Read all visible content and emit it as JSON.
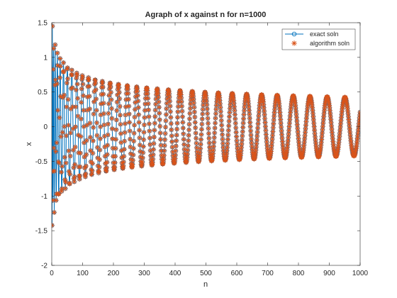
{
  "figure": {
    "background": "#ffffff"
  },
  "chart_data": {
    "type": "line",
    "title": "Agraph of x against n for n=1000",
    "xlabel": "n",
    "ylabel": "x",
    "xlim": [
      0,
      1000
    ],
    "ylim": [
      -2,
      1.5
    ],
    "xticks": [
      0,
      100,
      200,
      300,
      400,
      500,
      600,
      700,
      800,
      900,
      1000
    ],
    "xtick_labels": [
      "0",
      "100",
      "200",
      "300",
      "400",
      "500",
      "600",
      "700",
      "800",
      "900",
      "1000"
    ],
    "yticks": [
      -2,
      -1.5,
      -1,
      -0.5,
      0,
      0.5,
      1,
      1.5
    ],
    "ytick_labels": [
      "-2",
      "-1.5",
      "-1",
      "-0.5",
      "0",
      "0.5",
      "1",
      "1.5"
    ],
    "grid": false,
    "legend_position": "top-right",
    "model": "x(n) ≈ -1.58·(1+n/5)^(-0.25)·cos(2π·√(n/0.9)) (approximate reading)",
    "series": [
      {
        "name": "exact soln",
        "marker": "circle",
        "color": "#0072bd",
        "x": [
          1,
          5,
          10,
          15,
          17,
          20,
          25,
          30,
          35,
          40,
          45,
          50,
          55,
          60,
          65,
          70,
          80,
          90,
          100,
          110,
          130,
          150,
          180,
          200,
          230,
          260,
          300,
          330,
          370,
          400,
          450,
          480,
          530,
          570,
          620,
          660,
          720,
          770,
          820,
          880,
          940,
          1000
        ],
        "y": [
          -1.58,
          -0.85,
          0.6,
          1.08,
          1.05,
          0.72,
          -0.4,
          -0.84,
          -0.55,
          0.2,
          0.72,
          0.75,
          0.3,
          -0.35,
          -0.72,
          -0.7,
          -0.1,
          0.45,
          0.62,
          0.4,
          0.62,
          0.1,
          -0.55,
          -0.3,
          0.55,
          0.2,
          -0.5,
          0.0,
          0.48,
          0.1,
          -0.46,
          -0.1,
          0.44,
          0.0,
          -0.42,
          -0.05,
          0.4,
          0.0,
          -0.38,
          0.0,
          0.37,
          0.02
        ]
      },
      {
        "name": "algorithm soln",
        "marker": "asterisk",
        "color": "#d95319",
        "x": [
          1,
          5,
          10,
          15,
          17,
          20,
          25,
          30,
          35,
          40,
          45,
          50,
          55,
          60,
          65,
          70,
          80,
          90,
          100,
          110,
          130,
          150,
          180,
          200,
          230,
          260,
          300,
          330,
          370,
          400,
          450,
          480,
          530,
          570,
          620,
          660,
          720,
          770,
          820,
          880,
          940,
          1000
        ],
        "y": [
          -1.58,
          -0.85,
          0.6,
          1.08,
          1.05,
          0.72,
          -0.4,
          -0.84,
          -0.55,
          0.2,
          0.72,
          0.75,
          0.3,
          -0.35,
          -0.72,
          -0.7,
          -0.1,
          0.45,
          0.62,
          0.4,
          0.62,
          0.1,
          -0.55,
          -0.3,
          0.55,
          0.2,
          -0.5,
          0.0,
          0.48,
          0.1,
          -0.46,
          -0.1,
          0.44,
          0.0,
          -0.42,
          -0.05,
          0.4,
          0.0,
          -0.38,
          0.0,
          0.37,
          0.02
        ]
      }
    ]
  }
}
